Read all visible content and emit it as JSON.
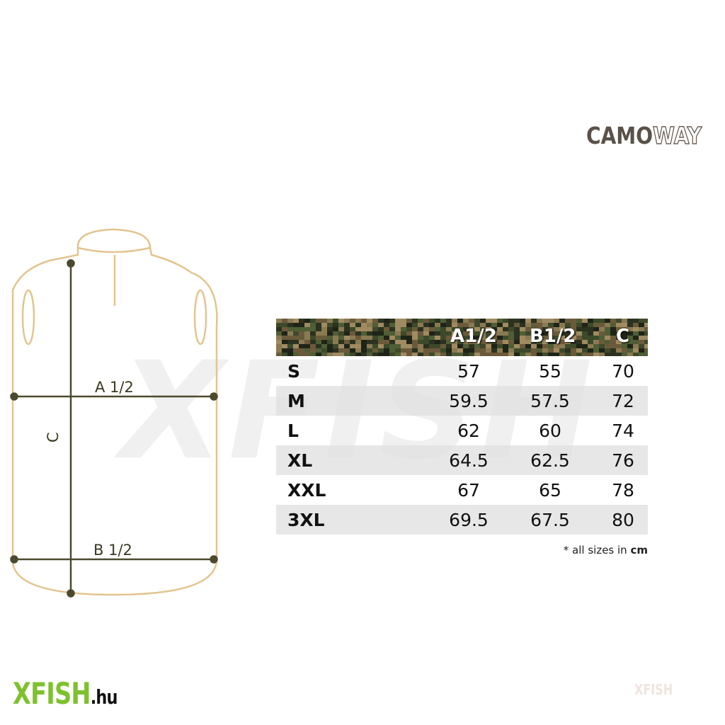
{
  "brand": {
    "part1": "CAMO",
    "part2": "WAY"
  },
  "diagram": {
    "label_a": "A 1/2",
    "label_b": "B 1/2",
    "label_c": "C",
    "outline_color": "#e3c48f",
    "line_color": "#4b4a2e"
  },
  "watermark": "XFISH",
  "table": {
    "headers": [
      "",
      "A1/2",
      "B1/2",
      "C"
    ],
    "rows": [
      {
        "size": "S",
        "a": "57",
        "b": "55",
        "c": "70"
      },
      {
        "size": "M",
        "a": "59.5",
        "b": "57.5",
        "c": "72"
      },
      {
        "size": "L",
        "a": "62",
        "b": "60",
        "c": "74"
      },
      {
        "size": "XL",
        "a": "64.5",
        "b": "62.5",
        "c": "76"
      },
      {
        "size": "XXL",
        "a": "67",
        "b": "65",
        "c": "78"
      },
      {
        "size": "3XL",
        "a": "69.5",
        "b": "67.5",
        "c": "80"
      }
    ],
    "note_prefix": "* all sizes in",
    "note_unit": "cm"
  },
  "footer": {
    "logo_main": "XFISH",
    "logo_tld": ".hu"
  }
}
